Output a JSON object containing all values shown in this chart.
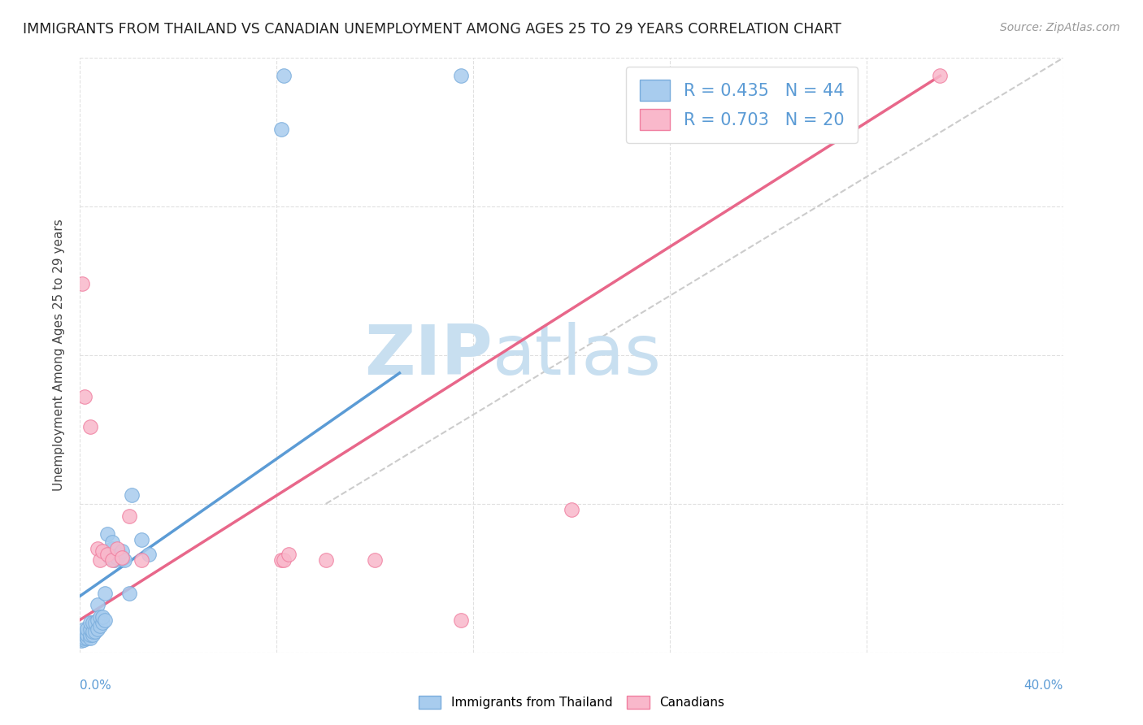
{
  "title": "IMMIGRANTS FROM THAILAND VS CANADIAN UNEMPLOYMENT AMONG AGES 25 TO 29 YEARS CORRELATION CHART",
  "source": "Source: ZipAtlas.com",
  "ylabel": "Unemployment Among Ages 25 to 29 years",
  "xlim": [
    0.0,
    0.4
  ],
  "ylim": [
    0.0,
    1.0
  ],
  "blue_color": "#a8ccee",
  "blue_color_edge": "#7aaddc",
  "pink_color": "#f9b8cb",
  "pink_color_edge": "#f07fa0",
  "blue_line_color": "#5b9bd5",
  "pink_line_color": "#e8678a",
  "diag_line_color": "#cccccc",
  "legend_blue_R": "R = 0.435",
  "legend_blue_N": "N = 44",
  "legend_pink_R": "R = 0.703",
  "legend_pink_N": "N = 20",
  "watermark_zip": "ZIP",
  "watermark_atlas": "atlas",
  "watermark_color": "#c8dff0",
  "right_tick_color": "#5b9bd5",
  "grid_color": "#e0e0e0",
  "blue_scatter_x": [
    0.0005,
    0.001,
    0.001,
    0.0015,
    0.002,
    0.002,
    0.002,
    0.003,
    0.003,
    0.003,
    0.004,
    0.004,
    0.004,
    0.004,
    0.005,
    0.005,
    0.005,
    0.006,
    0.006,
    0.007,
    0.007,
    0.007,
    0.008,
    0.008,
    0.009,
    0.009,
    0.01,
    0.01,
    0.011,
    0.012,
    0.013,
    0.013,
    0.014,
    0.015,
    0.016,
    0.017,
    0.018,
    0.02,
    0.021,
    0.025,
    0.028,
    0.082,
    0.083,
    0.155
  ],
  "blue_scatter_y": [
    0.02,
    0.025,
    0.03,
    0.022,
    0.025,
    0.03,
    0.04,
    0.025,
    0.03,
    0.04,
    0.025,
    0.03,
    0.04,
    0.05,
    0.03,
    0.035,
    0.05,
    0.035,
    0.05,
    0.04,
    0.055,
    0.08,
    0.045,
    0.06,
    0.05,
    0.06,
    0.055,
    0.1,
    0.2,
    0.16,
    0.175,
    0.185,
    0.155,
    0.16,
    0.165,
    0.17,
    0.155,
    0.1,
    0.265,
    0.19,
    0.165,
    0.88,
    0.97,
    0.97
  ],
  "pink_scatter_x": [
    0.001,
    0.002,
    0.004,
    0.007,
    0.008,
    0.009,
    0.011,
    0.013,
    0.015,
    0.017,
    0.02,
    0.025,
    0.082,
    0.083,
    0.085,
    0.1,
    0.12,
    0.155,
    0.2,
    0.35
  ],
  "pink_scatter_y": [
    0.62,
    0.43,
    0.38,
    0.175,
    0.155,
    0.17,
    0.165,
    0.155,
    0.175,
    0.16,
    0.23,
    0.155,
    0.155,
    0.155,
    0.165,
    0.155,
    0.155,
    0.055,
    0.24,
    0.97
  ],
  "blue_line_x": [
    0.0,
    0.13
  ],
  "blue_line_y": [
    0.095,
    0.47
  ],
  "pink_line_x": [
    0.0,
    0.35
  ],
  "pink_line_y": [
    0.055,
    0.97
  ],
  "diag_line_x": [
    0.1,
    0.4
  ],
  "diag_line_y": [
    0.25,
    1.0
  ],
  "title_fontsize": 12.5,
  "source_fontsize": 10,
  "axis_label_fontsize": 11,
  "legend_fontsize": 15,
  "marker_size": 160
}
